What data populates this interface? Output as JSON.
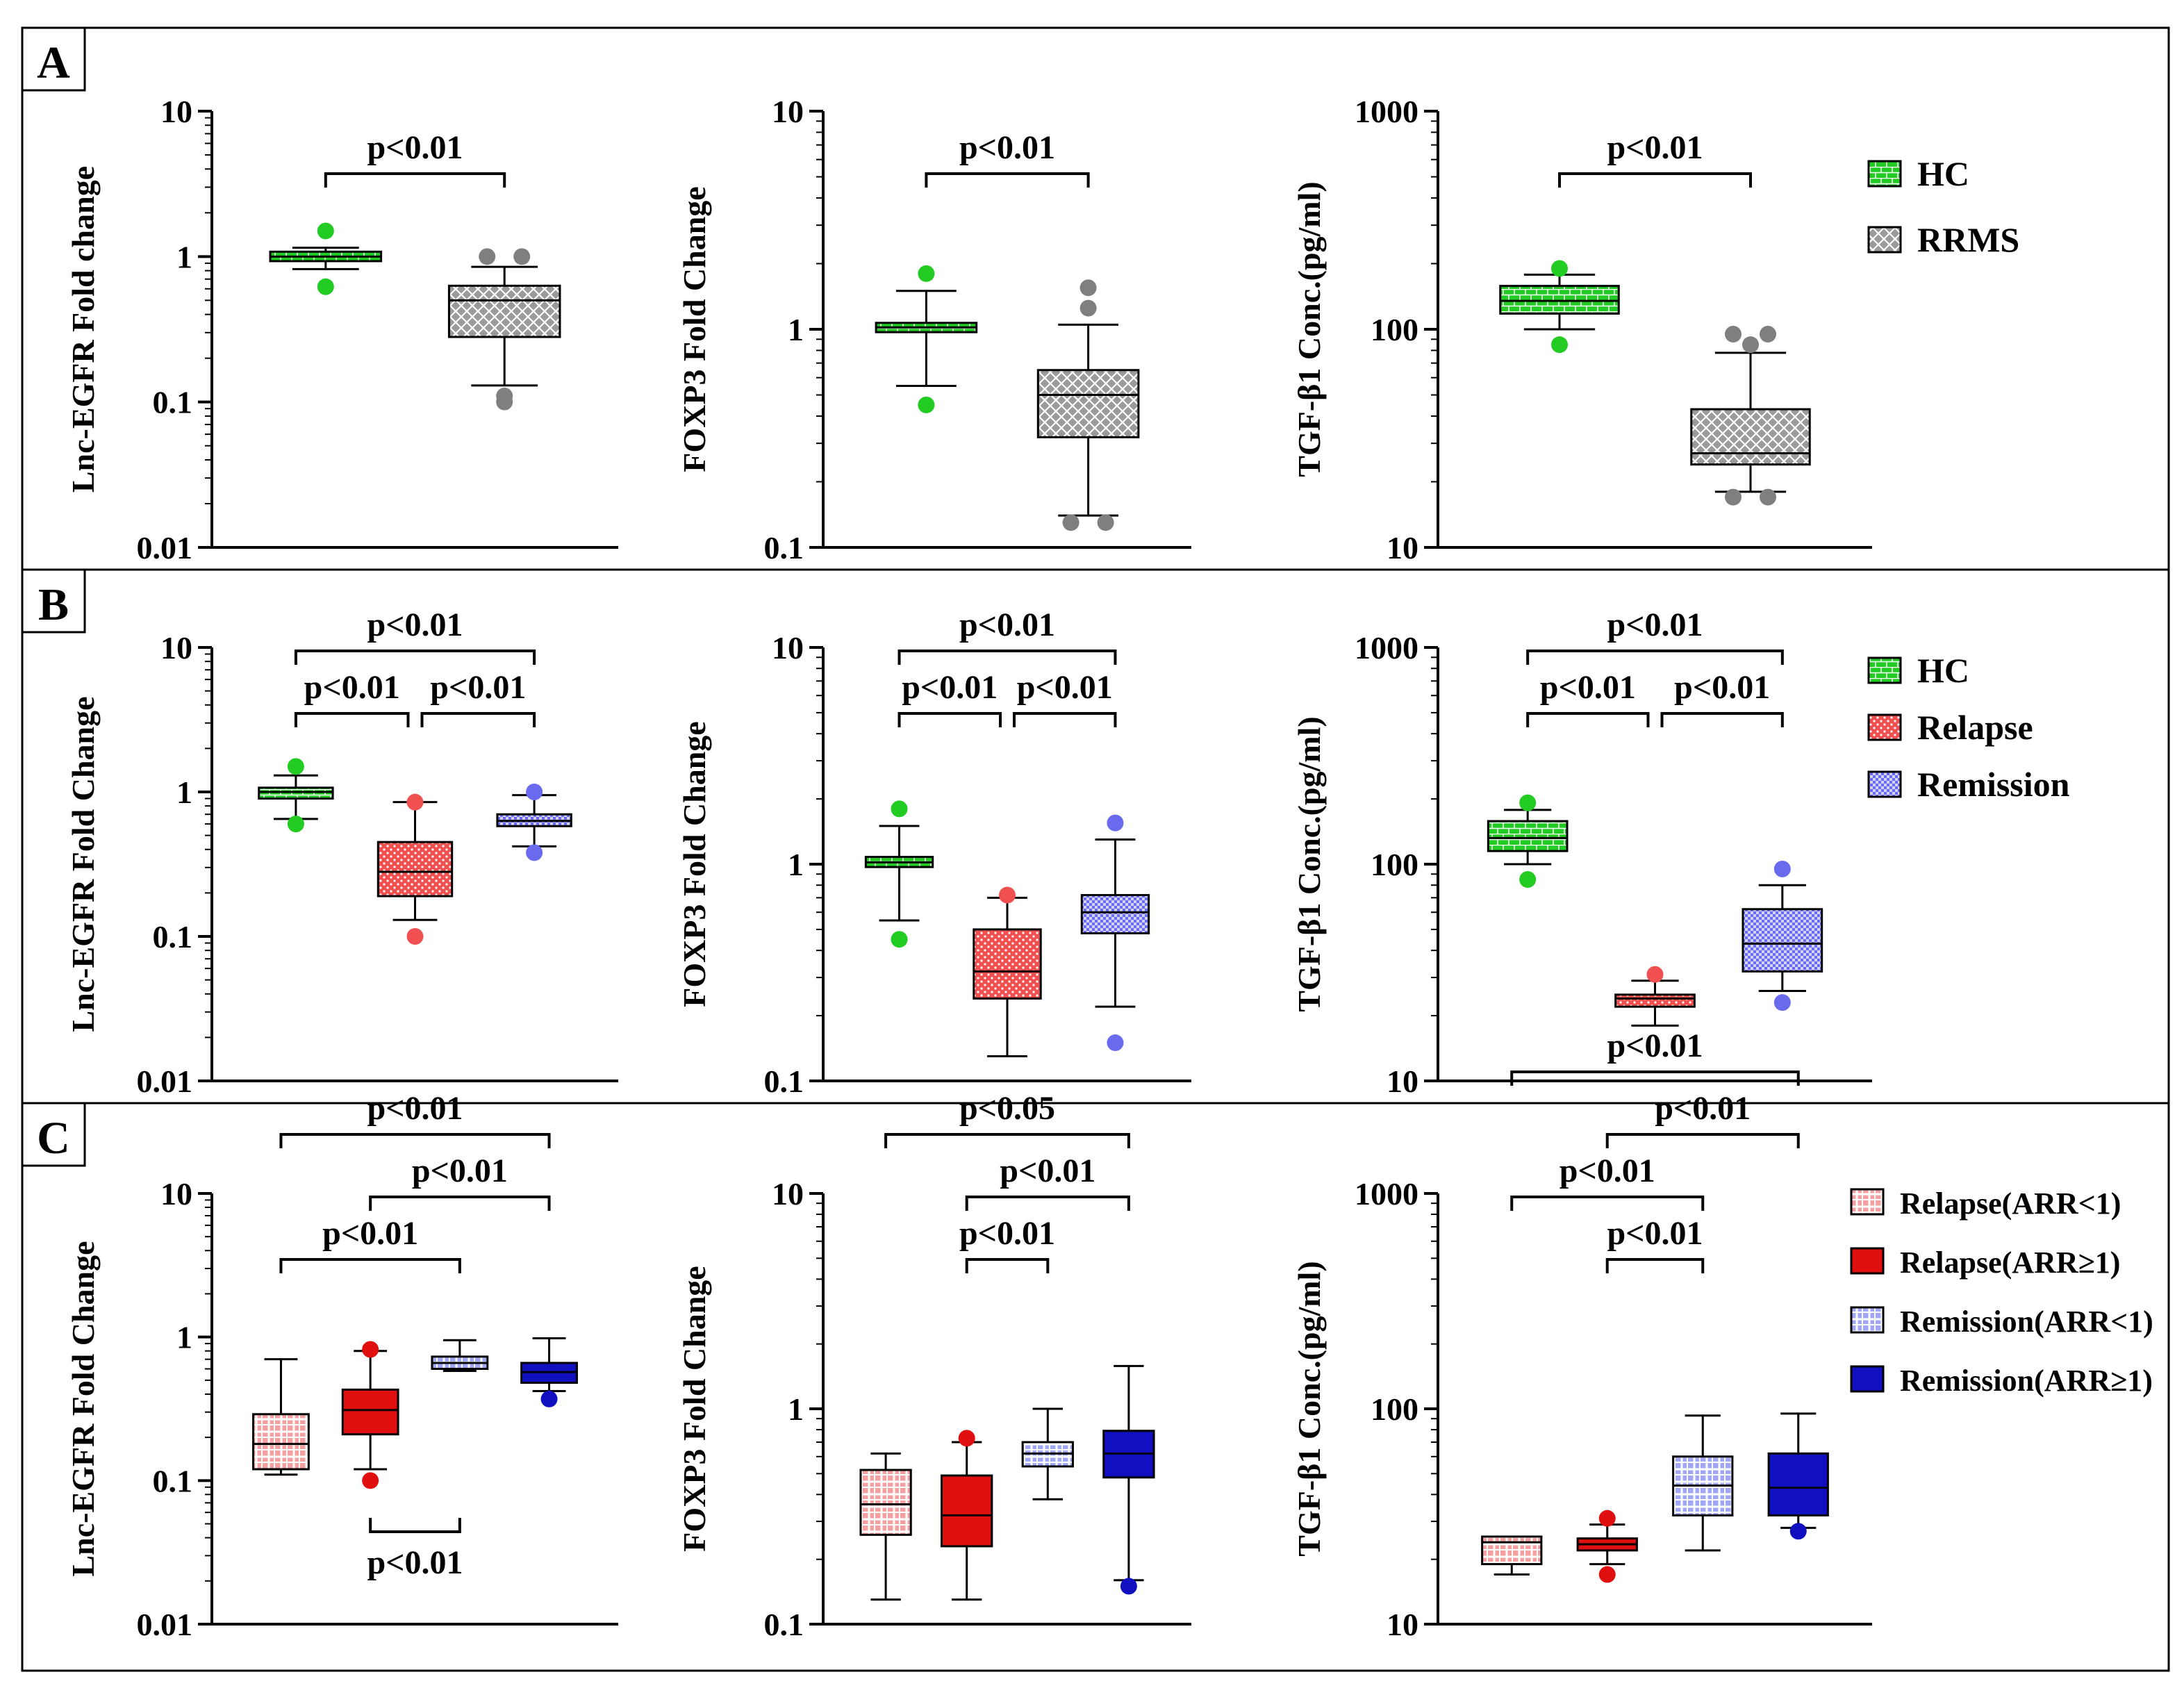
{
  "colors": {
    "hc": "#22cc22",
    "rrms": "#9a9a9a",
    "relapse": "#f05050",
    "remission": "#6a6aee",
    "relapse_lt1": "#f5a0a0",
    "relapse_ge1": "#e01010",
    "remission_lt1": "#a0a8f5",
    "remission_ge1": "#1010c0"
  },
  "rows": [
    {
      "label": "A",
      "legend": [
        {
          "name": "HC",
          "color_key": "hc",
          "pattern": "brick"
        },
        {
          "name": "RRMS",
          "color_key": "rrms",
          "pattern": "cross"
        }
      ]
    },
    {
      "label": "B",
      "legend": [
        {
          "name": "HC",
          "color_key": "hc",
          "pattern": "brick"
        },
        {
          "name": "Relapse",
          "color_key": "relapse",
          "pattern": "dots"
        },
        {
          "name": "Remission",
          "color_key": "remission",
          "pattern": "checker"
        }
      ]
    },
    {
      "label": "C",
      "legend": [
        {
          "name": "Relapse(ARR<1)",
          "color_key": "relapse_lt1",
          "pattern": "grid"
        },
        {
          "name": "Relapse(ARR≥1)",
          "color_key": "relapse_ge1",
          "pattern": "solid"
        },
        {
          "name": "Remission(ARR<1)",
          "color_key": "remission_lt1",
          "pattern": "grid"
        },
        {
          "name": "Remission(ARR≥1)",
          "color_key": "remission_ge1",
          "pattern": "solid"
        }
      ]
    }
  ],
  "chart_data": [
    {
      "id": "A1",
      "type": "boxplot",
      "scale": "log",
      "ylim": [
        0.01,
        10
      ],
      "ylabel": "Lnc-EGFR Fold change",
      "yticks": [
        {
          "v": 0.01,
          "t": "0.01"
        },
        {
          "v": 0.1,
          "t": "0.1"
        },
        {
          "v": 1,
          "t": "1"
        },
        {
          "v": 10,
          "t": "10"
        }
      ],
      "groups": [
        {
          "name": "HC",
          "color_key": "hc",
          "pattern": "brick",
          "min": 0.82,
          "q1": 0.93,
          "median": 1.0,
          "q3": 1.08,
          "max": 1.15,
          "outliers": [
            1.5,
            0.62
          ]
        },
        {
          "name": "RRMS",
          "color_key": "rrms",
          "pattern": "cross",
          "min": 0.13,
          "q1": 0.28,
          "median": 0.5,
          "q3": 0.63,
          "max": 0.85,
          "outliers": [
            1.0,
            1.0,
            0.1,
            0.11
          ]
        }
      ],
      "annotations": [
        {
          "from": 0,
          "to": 1,
          "level": 1,
          "text": "p<0.01"
        }
      ]
    },
    {
      "id": "A2",
      "type": "boxplot",
      "scale": "log",
      "ylim": [
        0.1,
        10
      ],
      "ylabel": "FOXP3 Fold Change",
      "yticks": [
        {
          "v": 0.1,
          "t": "0.1"
        },
        {
          "v": 1,
          "t": "1"
        },
        {
          "v": 10,
          "t": "10"
        }
      ],
      "groups": [
        {
          "name": "HC",
          "color_key": "hc",
          "pattern": "brick",
          "min": 0.55,
          "q1": 0.97,
          "median": 1.02,
          "q3": 1.07,
          "max": 1.5,
          "outliers": [
            1.8,
            0.45
          ]
        },
        {
          "name": "RRMS",
          "color_key": "rrms",
          "pattern": "cross",
          "min": 0.14,
          "q1": 0.32,
          "median": 0.5,
          "q3": 0.65,
          "max": 1.05,
          "outliers": [
            1.55,
            1.25,
            0.13,
            0.13
          ]
        }
      ],
      "annotations": [
        {
          "from": 0,
          "to": 1,
          "level": 1,
          "text": "p<0.01"
        }
      ]
    },
    {
      "id": "A3",
      "type": "boxplot",
      "scale": "log",
      "ylim": [
        10,
        1000
      ],
      "ylabel": "TGF-β1 Conc.(pg/ml)",
      "yticks": [
        {
          "v": 10,
          "t": "10"
        },
        {
          "v": 100,
          "t": "100"
        },
        {
          "v": 1000,
          "t": "1000"
        }
      ],
      "groups": [
        {
          "name": "HC",
          "color_key": "hc",
          "pattern": "brick",
          "min": 100,
          "q1": 118,
          "median": 135,
          "q3": 158,
          "max": 178,
          "outliers": [
            190,
            85
          ]
        },
        {
          "name": "RRMS",
          "color_key": "rrms",
          "pattern": "cross",
          "min": 18,
          "q1": 24,
          "median": 27,
          "q3": 43,
          "max": 78,
          "outliers": [
            95,
            95,
            85,
            17,
            17
          ]
        }
      ],
      "annotations": [
        {
          "from": 0,
          "to": 1,
          "level": 1,
          "text": "p<0.01"
        }
      ]
    },
    {
      "id": "B1",
      "type": "boxplot",
      "scale": "log",
      "ylim": [
        0.01,
        10
      ],
      "ylabel": "Lnc-EGFR Fold Change",
      "yticks": [
        {
          "v": 0.01,
          "t": "0.01"
        },
        {
          "v": 0.1,
          "t": "0.1"
        },
        {
          "v": 1,
          "t": "1"
        },
        {
          "v": 10,
          "t": "10"
        }
      ],
      "groups": [
        {
          "name": "HC",
          "color_key": "hc",
          "pattern": "brick",
          "min": 0.65,
          "q1": 0.9,
          "median": 1.0,
          "q3": 1.07,
          "max": 1.3,
          "outliers": [
            1.5,
            0.6
          ]
        },
        {
          "name": "Relapse",
          "color_key": "relapse",
          "pattern": "dots",
          "min": 0.13,
          "q1": 0.19,
          "median": 0.28,
          "q3": 0.45,
          "max": 0.85,
          "outliers": [
            0.85,
            0.1
          ]
        },
        {
          "name": "Remission",
          "color_key": "remission",
          "pattern": "checker",
          "min": 0.42,
          "q1": 0.58,
          "median": 0.63,
          "q3": 0.7,
          "max": 0.95,
          "outliers": [
            1.0,
            0.38
          ]
        }
      ],
      "annotations": [
        {
          "from": 0,
          "to": 2,
          "level": 2,
          "text": "p<0.01"
        },
        {
          "from": 0,
          "to": 1,
          "level": 1,
          "text": "p<0.01"
        },
        {
          "from": 1,
          "to": 2,
          "level": 1,
          "text": "p<0.01"
        }
      ]
    },
    {
      "id": "B2",
      "type": "boxplot",
      "scale": "log",
      "ylim": [
        0.1,
        10
      ],
      "ylabel": "FOXP3 Fold Change",
      "yticks": [
        {
          "v": 0.1,
          "t": "0.1"
        },
        {
          "v": 1,
          "t": "1"
        },
        {
          "v": 10,
          "t": "10"
        }
      ],
      "groups": [
        {
          "name": "HC",
          "color_key": "hc",
          "pattern": "brick",
          "min": 0.55,
          "q1": 0.97,
          "median": 1.02,
          "q3": 1.08,
          "max": 1.5,
          "outliers": [
            1.8,
            0.45
          ]
        },
        {
          "name": "Relapse",
          "color_key": "relapse",
          "pattern": "dots",
          "min": 0.13,
          "q1": 0.24,
          "median": 0.32,
          "q3": 0.5,
          "max": 0.7,
          "outliers": [
            0.72
          ]
        },
        {
          "name": "Remission",
          "color_key": "remission",
          "pattern": "checker",
          "min": 0.22,
          "q1": 0.48,
          "median": 0.6,
          "q3": 0.72,
          "max": 1.3,
          "outliers": [
            1.55,
            0.15
          ]
        }
      ],
      "annotations": [
        {
          "from": 0,
          "to": 2,
          "level": 2,
          "text": "p<0.01"
        },
        {
          "from": 0,
          "to": 1,
          "level": 1,
          "text": "p<0.01"
        },
        {
          "from": 1,
          "to": 2,
          "level": 1,
          "text": "p<0.01"
        }
      ]
    },
    {
      "id": "B3",
      "type": "boxplot",
      "scale": "log",
      "ylim": [
        10,
        1000
      ],
      "ylabel": "TGF-β1 Conc.(pg/ml)",
      "yticks": [
        {
          "v": 10,
          "t": "10"
        },
        {
          "v": 100,
          "t": "100"
        },
        {
          "v": 1000,
          "t": "1000"
        }
      ],
      "groups": [
        {
          "name": "HC",
          "color_key": "hc",
          "pattern": "brick",
          "min": 100,
          "q1": 115,
          "median": 132,
          "q3": 158,
          "max": 178,
          "outliers": [
            192,
            85
          ]
        },
        {
          "name": "Relapse",
          "color_key": "relapse",
          "pattern": "dots",
          "min": 18,
          "q1": 22,
          "median": 24,
          "q3": 25,
          "max": 29,
          "outliers": [
            31
          ]
        },
        {
          "name": "Remission",
          "color_key": "remission",
          "pattern": "checker",
          "min": 26,
          "q1": 32,
          "median": 43,
          "q3": 62,
          "max": 80,
          "outliers": [
            95,
            23
          ]
        }
      ],
      "annotations": [
        {
          "from": 0,
          "to": 2,
          "level": 2,
          "text": "p<0.01"
        },
        {
          "from": 0,
          "to": 1,
          "level": 1,
          "text": "p<0.01"
        },
        {
          "from": 1,
          "to": 2,
          "level": 1,
          "text": "p<0.01"
        }
      ]
    },
    {
      "id": "C1",
      "type": "boxplot",
      "scale": "log",
      "ylim": [
        0.01,
        10
      ],
      "ylabel": "Lnc-EGFR Fold Change",
      "yticks": [
        {
          "v": 0.01,
          "t": "0.01"
        },
        {
          "v": 0.1,
          "t": "0.1"
        },
        {
          "v": 1,
          "t": "1"
        },
        {
          "v": 10,
          "t": "10"
        }
      ],
      "groups": [
        {
          "name": "Relapse(ARR<1)",
          "color_key": "relapse_lt1",
          "pattern": "grid",
          "min": 0.11,
          "q1": 0.12,
          "median": 0.18,
          "q3": 0.29,
          "max": 0.7,
          "outliers": []
        },
        {
          "name": "Relapse(ARR≥1)",
          "color_key": "relapse_ge1",
          "pattern": "solid",
          "min": 0.12,
          "q1": 0.21,
          "median": 0.31,
          "q3": 0.43,
          "max": 0.8,
          "outliers": [
            0.82,
            0.1
          ]
        },
        {
          "name": "Remission(ARR<1)",
          "color_key": "remission_lt1",
          "pattern": "grid",
          "min": 0.58,
          "q1": 0.6,
          "median": 0.66,
          "q3": 0.73,
          "max": 0.95,
          "outliers": []
        },
        {
          "name": "Remission(ARR≥1)",
          "color_key": "remission_ge1",
          "pattern": "solid",
          "min": 0.42,
          "q1": 0.48,
          "median": 0.57,
          "q3": 0.66,
          "max": 0.98,
          "outliers": [
            0.37
          ]
        }
      ],
      "annotations": [
        {
          "from": 0,
          "to": 3,
          "level": 3,
          "text": "p<0.01"
        },
        {
          "from": 1,
          "to": 3,
          "level": 2,
          "text": "p<0.01"
        },
        {
          "from": 0,
          "to": 2,
          "level": 1,
          "text": "p<0.01"
        },
        {
          "from": 1,
          "to": 2,
          "level": -1,
          "text": "p<0.01"
        }
      ]
    },
    {
      "id": "C2",
      "type": "boxplot",
      "scale": "log",
      "ylim": [
        0.1,
        10
      ],
      "ylabel": "FOXP3 Fold Change",
      "yticks": [
        {
          "v": 0.1,
          "t": "0.1"
        },
        {
          "v": 1,
          "t": "1"
        },
        {
          "v": 10,
          "t": "10"
        }
      ],
      "groups": [
        {
          "name": "Relapse(ARR<1)",
          "color_key": "relapse_lt1",
          "pattern": "grid",
          "min": 0.13,
          "q1": 0.26,
          "median": 0.36,
          "q3": 0.52,
          "max": 0.62,
          "outliers": []
        },
        {
          "name": "Relapse(ARR≥1)",
          "color_key": "relapse_ge1",
          "pattern": "solid",
          "min": 0.13,
          "q1": 0.23,
          "median": 0.32,
          "q3": 0.49,
          "max": 0.7,
          "outliers": [
            0.73
          ]
        },
        {
          "name": "Remission(ARR<1)",
          "color_key": "remission_lt1",
          "pattern": "grid",
          "min": 0.38,
          "q1": 0.54,
          "median": 0.62,
          "q3": 0.7,
          "max": 1.0,
          "outliers": []
        },
        {
          "name": "Remission(ARR≥1)",
          "color_key": "remission_ge1",
          "pattern": "solid",
          "min": 0.16,
          "q1": 0.48,
          "median": 0.62,
          "q3": 0.79,
          "max": 1.58,
          "outliers": [
            0.15
          ]
        }
      ],
      "annotations": [
        {
          "from": 0,
          "to": 3,
          "level": 3,
          "text": "p<0.05"
        },
        {
          "from": 1,
          "to": 3,
          "level": 2,
          "text": "p<0.01"
        },
        {
          "from": 1,
          "to": 2,
          "level": 1,
          "text": "p<0.01"
        }
      ]
    },
    {
      "id": "C3",
      "type": "boxplot",
      "scale": "log",
      "ylim": [
        10,
        1000
      ],
      "ylabel": "TGF-β1 Conc.(pg/ml)",
      "yticks": [
        {
          "v": 10,
          "t": "10"
        },
        {
          "v": 100,
          "t": "100"
        },
        {
          "v": 1000,
          "t": "1000"
        }
      ],
      "groups": [
        {
          "name": "Relapse(ARR<1)",
          "color_key": "relapse_lt1",
          "pattern": "grid",
          "min": 17,
          "q1": 19,
          "median": 24,
          "q3": 25.5,
          "max": 25.5,
          "outliers": []
        },
        {
          "name": "Relapse(ARR≥1)",
          "color_key": "relapse_ge1",
          "pattern": "solid",
          "min": 19,
          "q1": 22,
          "median": 23.5,
          "q3": 25,
          "max": 29,
          "outliers": [
            31,
            17
          ]
        },
        {
          "name": "Remission(ARR<1)",
          "color_key": "remission_lt1",
          "pattern": "grid",
          "min": 22,
          "q1": 32,
          "median": 44,
          "q3": 60,
          "max": 93,
          "outliers": []
        },
        {
          "name": "Remission(ARR≥1)",
          "color_key": "remission_ge1",
          "pattern": "solid",
          "min": 28,
          "q1": 32,
          "median": 43,
          "q3": 62,
          "max": 95,
          "outliers": [
            27
          ]
        }
      ],
      "annotations": [
        {
          "from": 0,
          "to": 3,
          "level": 4,
          "text": "p<0.01"
        },
        {
          "from": 1,
          "to": 3,
          "level": 3,
          "text": "p<0.01"
        },
        {
          "from": 0,
          "to": 2,
          "level": 2,
          "text": "p<0.01"
        },
        {
          "from": 1,
          "to": 2,
          "level": 1,
          "text": "p<0.01"
        }
      ]
    }
  ]
}
